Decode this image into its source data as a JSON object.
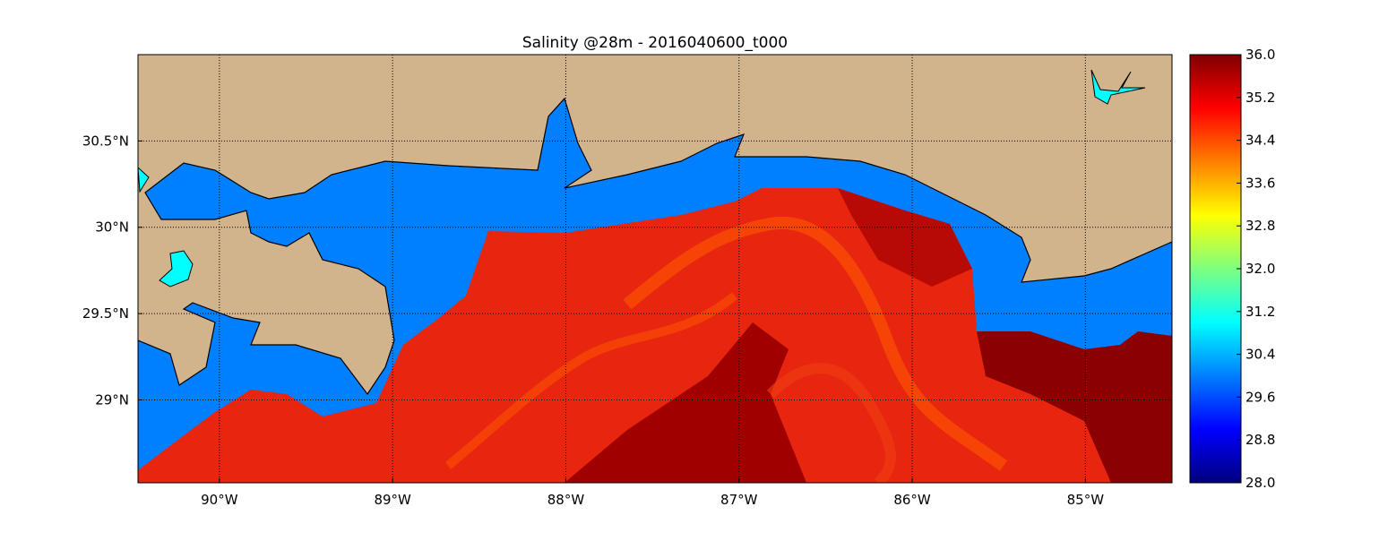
{
  "map": {
    "title": "Salinity @28m - 2016040600_t000",
    "xlim": [
      -90.47,
      -84.5
    ],
    "ylim": [
      28.52,
      31.0
    ],
    "xticks": [
      {
        "value": -90,
        "label": "90°W"
      },
      {
        "value": -89,
        "label": "89°W"
      },
      {
        "value": -88,
        "label": "88°W"
      },
      {
        "value": -87,
        "label": "87°W"
      },
      {
        "value": -86,
        "label": "86°W"
      },
      {
        "value": -85,
        "label": "85°W"
      }
    ],
    "yticks": [
      {
        "value": 29,
        "label": "29°N"
      },
      {
        "value": 29.5,
        "label": "29.5°N"
      },
      {
        "value": 30,
        "label": "30°N"
      },
      {
        "value": 30.5,
        "label": "30.5°N"
      }
    ],
    "grid": true,
    "colorbar": {
      "colormap": "jet",
      "ylim": [
        28,
        36
      ],
      "yticks": [
        {
          "value": 28,
          "label": "28.0"
        },
        28.8,
        29.6,
        30.4,
        31.2,
        {
          "value": 32,
          "label": "32.0"
        },
        32.8,
        33.6,
        34.4,
        35.2,
        {
          "value": 36,
          "label": "36.0"
        }
      ]
    }
  }
}
